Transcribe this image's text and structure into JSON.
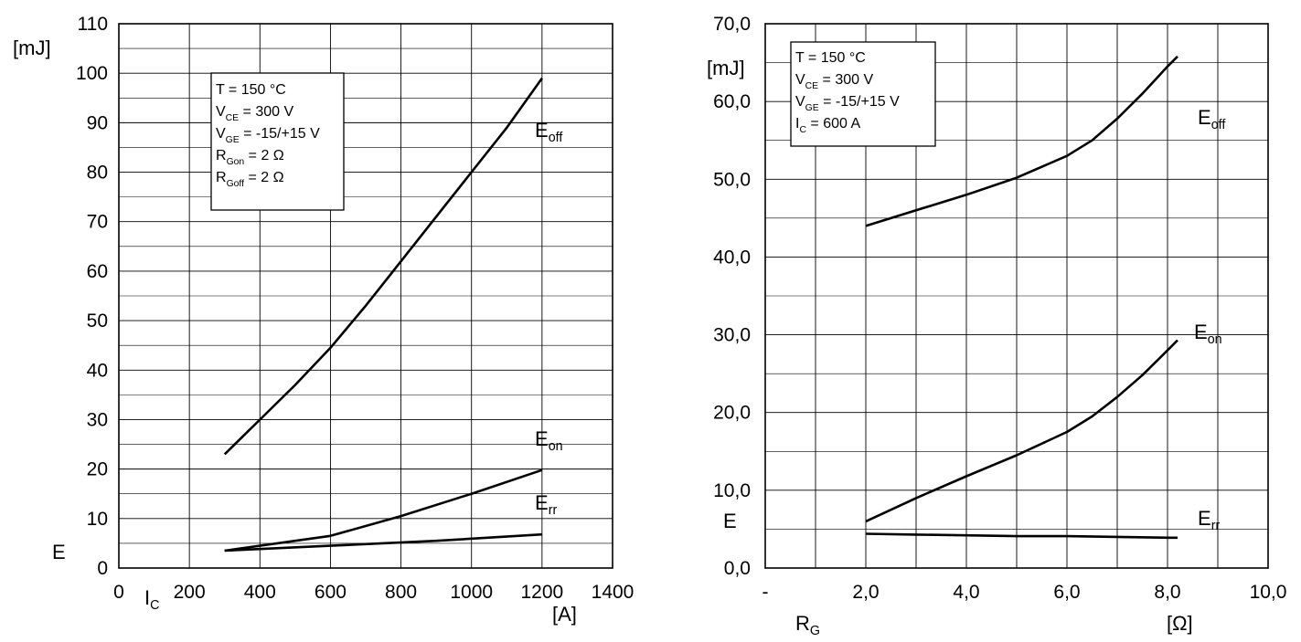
{
  "chart_data": [
    {
      "type": "line",
      "ylabel": "E",
      "yunit": "[mJ]",
      "xlabel": "I",
      "xlabel_sub": "C",
      "xunit": "[A]",
      "xlim": [
        0,
        1400
      ],
      "ylim": [
        0,
        110
      ],
      "xticks": [
        0,
        200,
        400,
        600,
        800,
        1000,
        1200,
        1400
      ],
      "yticks": [
        0,
        10,
        20,
        30,
        40,
        50,
        60,
        70,
        80,
        90,
        100,
        110
      ],
      "grid": true,
      "conditions": [
        {
          "main": "T",
          "sub": "",
          "rest": "= 150 °C"
        },
        {
          "main": "V",
          "sub": "CE",
          "rest": "= 300 V"
        },
        {
          "main": "V",
          "sub": "GE",
          "rest": "= -15/+15 V"
        },
        {
          "main": "R",
          "sub": "Gon",
          "rest": "= 2 Ω"
        },
        {
          "main": "R",
          "sub": "Goff",
          "rest": "= 2 Ω"
        }
      ],
      "series": [
        {
          "name": "E",
          "name_sub": "off",
          "x": [
            300,
            400,
            500,
            600,
            700,
            800,
            900,
            1000,
            1100,
            1200
          ],
          "values": [
            23,
            30,
            37,
            44.5,
            53,
            62,
            71,
            80,
            89,
            99
          ]
        },
        {
          "name": "E",
          "name_sub": "on",
          "x": [
            300,
            600,
            800,
            1000,
            1200
          ],
          "values": [
            3.5,
            6.5,
            10.5,
            15,
            19.8
          ]
        },
        {
          "name": "E",
          "name_sub": "rr",
          "x": [
            300,
            600,
            900,
            1200
          ],
          "values": [
            3.5,
            4.5,
            5.5,
            6.8
          ]
        }
      ]
    },
    {
      "type": "line",
      "ylabel": "E",
      "yunit": "[mJ]",
      "xlabel": "R",
      "xlabel_sub": "G",
      "xunit": "[Ω]",
      "xfirst_label": "-",
      "xlim": [
        0,
        10
      ],
      "ylim": [
        0,
        70
      ],
      "xticks": [
        "-",
        "2,0",
        "4,0",
        "6,0",
        "8,0",
        "10,0"
      ],
      "yticks": [
        "0,0",
        "10,0",
        "20,0",
        "30,0",
        "40,0",
        "50,0",
        "60,0",
        "70,0"
      ],
      "grid": true,
      "conditions": [
        {
          "main": "T",
          "sub": "",
          "rest": "= 150 °C"
        },
        {
          "main": "V",
          "sub": "CE",
          "rest": "= 300 V"
        },
        {
          "main": "V",
          "sub": "GE",
          "rest": "= -15/+15 V"
        },
        {
          "main": "I",
          "sub": "C",
          "rest": "= 600 A"
        }
      ],
      "series": [
        {
          "name": "E",
          "name_sub": "off",
          "x": [
            2,
            3,
            4,
            5,
            6,
            6.5,
            7,
            7.5,
            8,
            8.2
          ],
          "values": [
            44,
            46,
            48,
            50.2,
            53,
            55,
            57.8,
            61,
            64.5,
            65.8
          ]
        },
        {
          "name": "E",
          "name_sub": "on",
          "x": [
            2,
            3,
            4,
            5,
            6,
            6.5,
            7,
            7.5,
            8,
            8.2
          ],
          "values": [
            6,
            9,
            11.8,
            14.5,
            17.5,
            19.5,
            22,
            24.8,
            28,
            29.3
          ]
        },
        {
          "name": "E",
          "name_sub": "rr",
          "x": [
            2,
            3,
            4,
            5,
            6,
            7,
            8,
            8.2
          ],
          "values": [
            4.4,
            4.3,
            4.2,
            4.1,
            4.1,
            4.0,
            3.9,
            3.9
          ]
        }
      ]
    }
  ]
}
